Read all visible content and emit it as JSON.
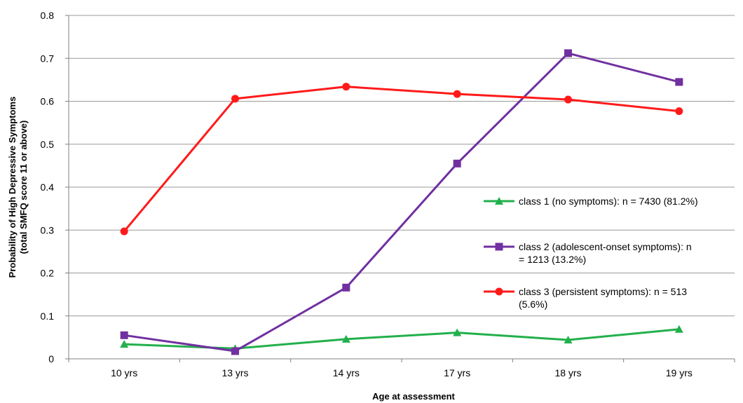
{
  "chart_data": {
    "type": "line",
    "title": "",
    "xlabel": "Age at assessment",
    "ylabel": [
      "Probability of High Depressive Symptoms",
      "(total SMFQ score 11 or above)"
    ],
    "categories": [
      "10 yrs",
      "13 yrs",
      "14 yrs",
      "17 yrs",
      "18 yrs",
      "19 yrs"
    ],
    "ylim": [
      0,
      0.8
    ],
    "yticks": [
      "0",
      "0.1",
      "0.2",
      "0.3",
      "0.4",
      "0.5",
      "0.6",
      "0.7",
      "0.8"
    ],
    "grid": "horizontal",
    "legend_position": "right",
    "series": [
      {
        "name": "class 1 (no symptoms): n = 7430 (81.2%)",
        "legend_lines": [
          "class 1 (no symptoms): n = 7430 (81.2%)"
        ],
        "color": "#22b04b",
        "marker": "triangle",
        "values": [
          0.034,
          0.024,
          0.046,
          0.061,
          0.044,
          0.069
        ]
      },
      {
        "name": "class 2 (adolescent-onset symptoms): n = 1213 (13.2%)",
        "legend_lines": [
          "class 2 (adolescent-onset symptoms): n",
          "= 1213 (13.2%)"
        ],
        "color": "#7030a0",
        "marker": "square",
        "values": [
          0.055,
          0.018,
          0.166,
          0.455,
          0.712,
          0.645
        ]
      },
      {
        "name": "class 3 (persistent symptoms): n = 513 (5.6%)",
        "legend_lines": [
          "class 3 (persistent symptoms): n = 513",
          "(5.6%)"
        ],
        "color": "#ff1a1a",
        "marker": "circle",
        "values": [
          0.297,
          0.606,
          0.634,
          0.617,
          0.604,
          0.577
        ]
      }
    ]
  }
}
